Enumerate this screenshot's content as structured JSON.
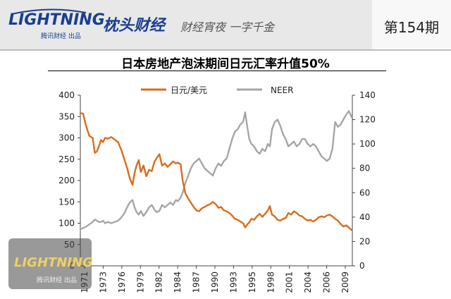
{
  "header": {
    "logo_text": "LIGHTNING",
    "logo_sub": "腾讯财经 出品",
    "dot": "·",
    "column_name": "枕头财经",
    "slogan": "财经宵夜 一字千金",
    "issue": "第154期"
  },
  "watermark": {
    "text": "LIGHTNING",
    "sub": "腾讯财经 出品"
  },
  "colors": {
    "yen": "#d96c1e",
    "neer": "#a6a6a6",
    "header_bg": "#e8e8e8",
    "brand": "#1a3f8f"
  },
  "chart_data": {
    "type": "line",
    "title": "日本房地产泡沫期间日元汇率升值50%",
    "legend_position": "top",
    "grid": false,
    "x_ticks": [
      "1971",
      "1973",
      "1976",
      "1979",
      "1982",
      "1984",
      "1987",
      "1990",
      "1993",
      "1995",
      "1998",
      "2001",
      "2004",
      "2006",
      "2009"
    ],
    "x_range": [
      1971,
      2010.6
    ],
    "y_left": {
      "ticks": [
        0,
        50,
        100,
        150,
        200,
        250,
        300,
        350,
        400
      ],
      "range": [
        0,
        400
      ]
    },
    "y_right": {
      "ticks": [
        0,
        20,
        40,
        60,
        80,
        100,
        120,
        140
      ],
      "range": [
        0,
        140
      ]
    },
    "series": [
      {
        "name": "日元/美元",
        "axis": "left",
        "color": "#d96c1e",
        "x": [
          1971.0,
          1971.4,
          1971.8,
          1972.3,
          1972.8,
          1973.1,
          1973.4,
          1973.7,
          1974.0,
          1974.3,
          1974.6,
          1975.0,
          1975.5,
          1976.0,
          1976.5,
          1977.0,
          1977.4,
          1977.8,
          1978.2,
          1978.6,
          1978.9,
          1979.2,
          1979.5,
          1979.8,
          1980.2,
          1980.6,
          1981.0,
          1981.4,
          1981.8,
          1982.1,
          1982.5,
          1982.9,
          1983.3,
          1983.7,
          1984.1,
          1984.5,
          1984.9,
          1985.2,
          1985.6,
          1985.9,
          1986.3,
          1986.7,
          1987.1,
          1987.5,
          1987.9,
          1988.3,
          1988.7,
          1989.1,
          1989.5,
          1989.9,
          1990.3,
          1990.7,
          1991.1,
          1991.5,
          1991.9,
          1992.3,
          1992.7,
          1993.1,
          1993.5,
          1993.9,
          1994.3,
          1994.7,
          1995.0,
          1995.3,
          1995.6,
          1995.9,
          1996.3,
          1996.7,
          1997.1,
          1997.5,
          1997.9,
          1998.3,
          1998.6,
          1998.9,
          1999.3,
          1999.7,
          2000.1,
          2000.5,
          2000.9,
          2001.3,
          2001.7,
          2002.1,
          2002.5,
          2002.9,
          2003.3,
          2003.7,
          2004.1,
          2004.5,
          2004.9,
          2005.3,
          2005.7,
          2006.1,
          2006.5,
          2006.9,
          2007.3,
          2007.7,
          2008.1,
          2008.5,
          2008.9,
          2009.3,
          2009.7,
          2010.1,
          2010.5
        ],
        "values": [
          358,
          357,
          330,
          305,
          300,
          265,
          268,
          280,
          295,
          290,
          300,
          298,
          302,
          296,
          290,
          270,
          250,
          230,
          205,
          190,
          218,
          236,
          248,
          220,
          235,
          210,
          225,
          222,
          245,
          252,
          262,
          235,
          240,
          232,
          238,
          245,
          240,
          242,
          238,
          200,
          170,
          158,
          148,
          138,
          130,
          128,
          135,
          138,
          142,
          145,
          150,
          145,
          136,
          138,
          130,
          128,
          124,
          118,
          110,
          108,
          104,
          100,
          90,
          97,
          102,
          110,
          108,
          116,
          122,
          115,
          122,
          130,
          140,
          120,
          116,
          108,
          106,
          110,
          112,
          124,
          120,
          128,
          124,
          118,
          116,
          110,
          106,
          108,
          104,
          108,
          114,
          116,
          114,
          118,
          120,
          116,
          110,
          106,
          98,
          92,
          95,
          90,
          84
        ]
      },
      {
        "name": "NEER",
        "axis": "right",
        "color": "#a6a6a6",
        "x": [
          1971.0,
          1971.4,
          1971.8,
          1972.3,
          1972.8,
          1973.1,
          1973.4,
          1973.7,
          1974.0,
          1974.3,
          1974.6,
          1975.0,
          1975.5,
          1976.0,
          1976.5,
          1977.0,
          1977.4,
          1977.8,
          1978.2,
          1978.6,
          1978.9,
          1979.2,
          1979.5,
          1979.8,
          1980.2,
          1980.6,
          1981.0,
          1981.4,
          1981.8,
          1982.1,
          1982.5,
          1982.9,
          1983.3,
          1983.7,
          1984.1,
          1984.5,
          1984.9,
          1985.2,
          1985.6,
          1985.9,
          1986.3,
          1986.7,
          1987.1,
          1987.5,
          1987.9,
          1988.3,
          1988.7,
          1989.1,
          1989.5,
          1989.9,
          1990.3,
          1990.7,
          1991.1,
          1991.5,
          1991.9,
          1992.3,
          1992.7,
          1993.1,
          1993.5,
          1993.9,
          1994.3,
          1994.7,
          1995.0,
          1995.3,
          1995.6,
          1995.9,
          1996.3,
          1996.7,
          1997.1,
          1997.5,
          1997.9,
          1998.3,
          1998.6,
          1998.9,
          1999.3,
          1999.7,
          2000.1,
          2000.5,
          2000.9,
          2001.3,
          2001.7,
          2002.1,
          2002.5,
          2002.9,
          2003.3,
          2003.7,
          2004.1,
          2004.5,
          2004.9,
          2005.3,
          2005.7,
          2006.1,
          2006.5,
          2006.9,
          2007.3,
          2007.7,
          2008.1,
          2008.5,
          2008.9,
          2009.3,
          2009.7,
          2010.1,
          2010.5
        ],
        "values": [
          30,
          31,
          32,
          34,
          36,
          38,
          37,
          36,
          36,
          37,
          35,
          36,
          35,
          36,
          37,
          40,
          43,
          48,
          52,
          54,
          48,
          44,
          42,
          45,
          41,
          44,
          48,
          50,
          46,
          44,
          45,
          50,
          48,
          50,
          52,
          50,
          54,
          53,
          56,
          60,
          68,
          74,
          80,
          84,
          86,
          88,
          84,
          80,
          78,
          76,
          74,
          80,
          84,
          82,
          86,
          88,
          96,
          104,
          110,
          112,
          116,
          118,
          126,
          114,
          104,
          100,
          98,
          94,
          92,
          96,
          94,
          100,
          98,
          112,
          118,
          120,
          115,
          108,
          104,
          98,
          100,
          102,
          98,
          100,
          104,
          104,
          100,
          98,
          100,
          98,
          94,
          90,
          88,
          86,
          88,
          96,
          118,
          114,
          116,
          120,
          124,
          127,
          122
        ]
      }
    ]
  }
}
